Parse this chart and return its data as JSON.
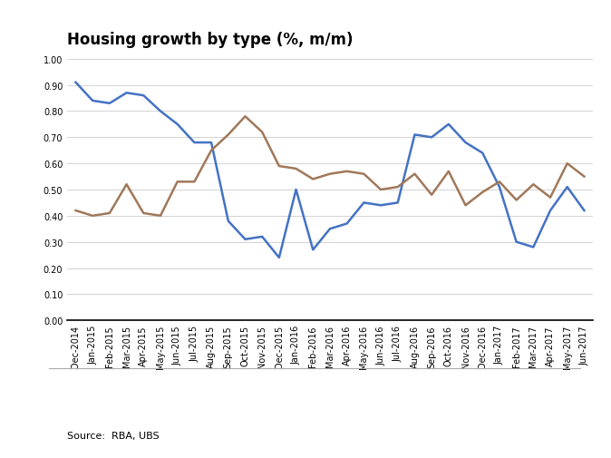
{
  "title": "Housing growth by type (%, m/m)",
  "source": "Source:  RBA, UBS",
  "labels": [
    "Dec-2014",
    "Jan-2015",
    "Feb-2015",
    "Mar-2015",
    "Apr-2015",
    "May-2015",
    "Jun-2015",
    "Jul-2015",
    "Aug-2015",
    "Sep-2015",
    "Oct-2015",
    "Nov-2015",
    "Dec-2015",
    "Jan-2016",
    "Feb-2016",
    "Mar-2016",
    "Apr-2016",
    "May-2016",
    "Jun-2016",
    "Jul-2016",
    "Aug-2016",
    "Sep-2016",
    "Oct-2016",
    "Nov-2016",
    "Dec-2016",
    "Jan-2017",
    "Feb-2017",
    "Mar-2017",
    "Apr-2017",
    "May-2017",
    "Jun-2017"
  ],
  "investor": [
    0.91,
    0.84,
    0.83,
    0.87,
    0.86,
    0.8,
    0.75,
    0.68,
    0.68,
    0.38,
    0.31,
    0.32,
    0.24,
    0.5,
    0.27,
    0.35,
    0.37,
    0.45,
    0.44,
    0.45,
    0.71,
    0.7,
    0.75,
    0.68,
    0.64,
    0.51,
    0.3,
    0.28,
    0.42,
    0.51,
    0.42
  ],
  "owner": [
    0.42,
    0.4,
    0.41,
    0.52,
    0.41,
    0.4,
    0.53,
    0.53,
    0.65,
    0.71,
    0.78,
    0.72,
    0.59,
    0.58,
    0.54,
    0.56,
    0.57,
    0.56,
    0.5,
    0.51,
    0.56,
    0.48,
    0.57,
    0.44,
    0.49,
    0.53,
    0.46,
    0.52,
    0.47,
    0.6,
    0.55
  ],
  "investor_color": "#4472C4",
  "owner_color": "#A0785A",
  "ylim": [
    0.0,
    1.0
  ],
  "yticks": [
    0.0,
    0.1,
    0.2,
    0.3,
    0.4,
    0.5,
    0.6,
    0.7,
    0.8,
    0.9,
    1.0
  ],
  "background_color": "#ffffff",
  "title_fontsize": 12,
  "tick_fontsize": 7,
  "legend_fontsize": 8,
  "source_fontsize": 8
}
